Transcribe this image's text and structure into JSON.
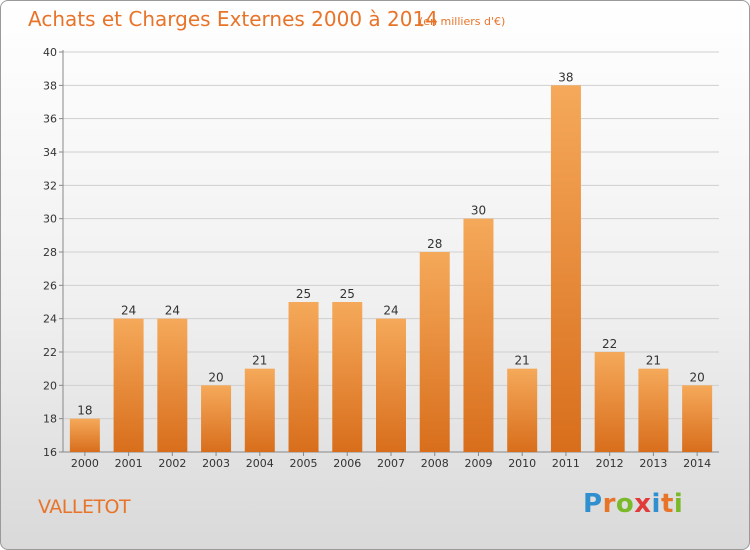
{
  "chart_data": {
    "type": "bar",
    "title": "Achats et Charges Externes 2000 à 2014",
    "subtitle": "(en milliers d'€)",
    "categories": [
      "2000",
      "2001",
      "2002",
      "2003",
      "2004",
      "2005",
      "2006",
      "2007",
      "2008",
      "2009",
      "2010",
      "2011",
      "2012",
      "2013",
      "2014"
    ],
    "values": [
      18,
      24,
      24,
      20,
      21,
      25,
      25,
      24,
      28,
      30,
      21,
      38,
      22,
      21,
      20
    ],
    "ylim": [
      16,
      40
    ],
    "yticks": [
      16,
      18,
      20,
      22,
      24,
      26,
      28,
      30,
      32,
      34,
      36,
      38,
      40
    ],
    "grid": true,
    "bar_color": "#e8842e",
    "bar_highlight": "#f5a95a"
  },
  "commune": "VALLETOT",
  "logo": {
    "text": "Proxiti",
    "letter_colors": [
      "#2f8fcf",
      "#e8742a",
      "#7ab929",
      "#e03a3a",
      "#2f8fcf",
      "#e8742a",
      "#7ab929"
    ]
  }
}
